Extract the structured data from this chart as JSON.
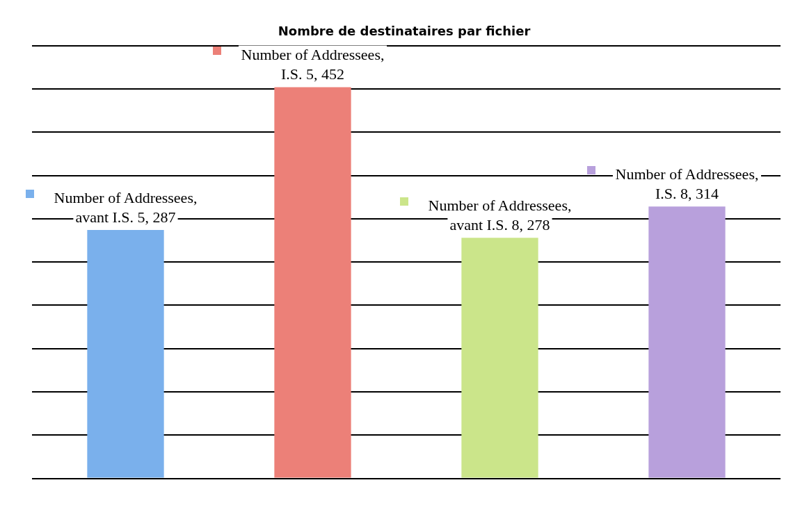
{
  "chart_data": {
    "type": "bar",
    "title": "Nombre de destinataires par fichier",
    "categories": [
      null,
      null,
      null,
      null
    ],
    "series": [
      {
        "colors": [
          "#7ab0ec",
          "#ec8078",
          "#cbe58a",
          "#b8a0dc"
        ],
        "values": [
          287,
          452,
          278,
          314
        ],
        "value_labels": [
          "Number of Addressees, avant I.S. 5, 287",
          "Number of Addressees, I.S. 5, 452",
          "Number of Addressees, avant I.S. 8, 278",
          "Number of Addressees, I.S. 8, 314"
        ]
      }
    ],
    "ylim": [
      0,
      500
    ],
    "yticks": [
      {
        "value": 0,
        "label": null
      },
      {
        "value": 50,
        "label": null
      },
      {
        "value": 100,
        "label": null
      },
      {
        "value": 150,
        "label": null
      },
      {
        "value": 200,
        "label": null
      },
      {
        "value": 250,
        "label": null
      },
      {
        "value": 300,
        "label": null
      },
      {
        "value": 350,
        "label": null
      },
      {
        "value": 400,
        "label": null
      },
      {
        "value": 450,
        "label": null
      },
      {
        "value": 500,
        "label": null
      }
    ],
    "grid": "y",
    "legend": false
  }
}
